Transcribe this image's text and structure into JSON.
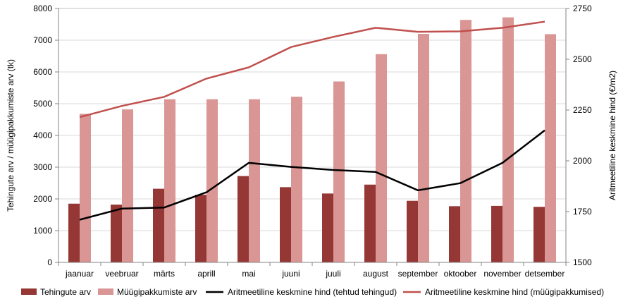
{
  "chart_data": {
    "type": "bar",
    "categories": [
      "jaanuar",
      "veebruar",
      "märts",
      "aprill",
      "mai",
      "juuni",
      "juuli",
      "august",
      "september",
      "oktoober",
      "november",
      "detsember"
    ],
    "series": [
      {
        "name": "Tehingute arv",
        "type": "bar",
        "axis": "left",
        "color": "#953735",
        "values": [
          1850,
          1820,
          2320,
          2130,
          2720,
          2370,
          2170,
          2450,
          1940,
          1770,
          1780,
          1750
        ]
      },
      {
        "name": "Müügipakkumiste arv",
        "type": "bar",
        "axis": "left",
        "color": "#d99694",
        "values": [
          4680,
          4820,
          5140,
          5140,
          5140,
          5220,
          5700,
          6560,
          7200,
          7640,
          7720,
          7190
        ]
      },
      {
        "name": "Aritmeetiline keskmine hind (tehtud tehingud)",
        "type": "line",
        "axis": "right",
        "color": "#000000",
        "values": [
          1710,
          1765,
          1770,
          1845,
          1990,
          1970,
          1955,
          1945,
          1855,
          1890,
          1990,
          2150
        ]
      },
      {
        "name": "Aritmeetiline keskmine hind (müügipakkumised)",
        "type": "line",
        "axis": "right",
        "color": "#c0504d",
        "values": [
          2215,
          2270,
          2315,
          2405,
          2460,
          2560,
          2610,
          2655,
          2635,
          2637,
          2655,
          2685
        ]
      }
    ],
    "ylabel": "Tehingute arv / müügipakkumiste arv (tk)",
    "ylabel_right": "Aritmeetiline keskmine hind (€/m2)",
    "ylim": [
      0,
      8000
    ],
    "yticks": [
      0,
      1000,
      2000,
      3000,
      4000,
      5000,
      6000,
      7000,
      8000
    ],
    "ylim_right": [
      1500,
      2750
    ],
    "yticks_right": [
      1500,
      1750,
      2000,
      2250,
      2500,
      2750
    ],
    "grid": true,
    "legend_position": "bottom"
  }
}
